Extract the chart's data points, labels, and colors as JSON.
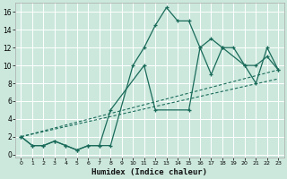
{
  "xlabel": "Humidex (Indice chaleur)",
  "bg_color": "#cce8dd",
  "grid_color": "#b0d8d0",
  "line_color": "#1a6b5a",
  "xlim": [
    -0.5,
    23.5
  ],
  "ylim": [
    -0.3,
    17.0
  ],
  "xticks": [
    0,
    1,
    2,
    3,
    4,
    5,
    6,
    7,
    8,
    9,
    10,
    11,
    12,
    13,
    14,
    15,
    16,
    17,
    18,
    19,
    20,
    21,
    22,
    23
  ],
  "yticks": [
    0,
    2,
    4,
    6,
    8,
    10,
    12,
    14,
    16
  ],
  "line1_x": [
    0,
    1,
    2,
    3,
    4,
    5,
    6,
    7,
    8,
    10,
    11,
    12,
    13,
    14,
    15,
    16,
    17,
    18,
    19,
    20,
    21,
    22,
    23
  ],
  "line1_y": [
    2,
    1,
    1,
    1.5,
    1,
    0.5,
    1,
    1,
    1,
    10,
    12,
    14.5,
    16.5,
    15,
    15,
    12,
    13,
    12,
    12,
    10,
    10,
    11,
    9.5
  ],
  "line2_x": [
    0,
    1,
    2,
    3,
    4,
    5,
    6,
    7,
    8,
    11,
    12,
    15,
    16,
    17,
    18,
    20,
    21,
    22,
    23
  ],
  "line2_y": [
    2,
    1,
    1,
    1.5,
    1,
    0.5,
    1,
    1,
    5,
    10,
    5,
    5,
    12,
    9,
    12,
    10,
    8,
    12,
    9.5
  ],
  "line3_x": [
    0,
    23
  ],
  "line3_y": [
    2,
    9.5
  ],
  "line4_x": [
    0,
    23
  ],
  "line4_y": [
    2,
    8.5
  ]
}
